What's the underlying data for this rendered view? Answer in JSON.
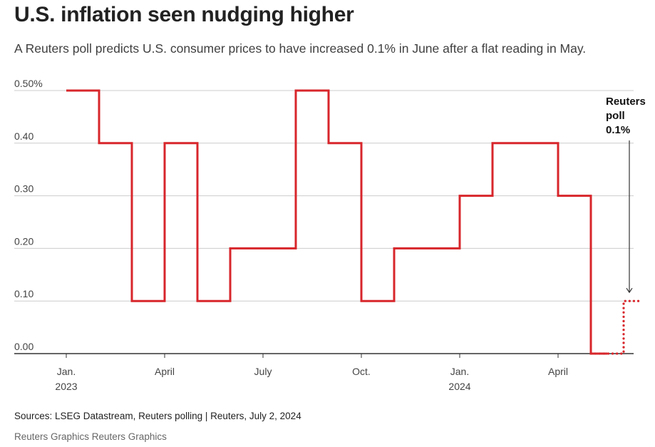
{
  "title": "U.S. inflation seen nudging higher",
  "subtitle": "A Reuters poll predicts U.S. consumer prices to have increased 0.1% in June after a flat reading in May.",
  "footer": {
    "sources": "Sources: LSEG Datastream, Reuters polling | Reuters, July 2, 2024",
    "credit": "Reuters Graphics Reuters Graphics"
  },
  "colors": {
    "line": "#d7262b",
    "grid": "#cccccc",
    "axis": "#333333",
    "annotation_arrow": "#333333"
  },
  "chart_data": {
    "type": "line",
    "step": true,
    "title": "U.S. inflation seen nudging higher",
    "xlabel": "",
    "ylabel": "",
    "ylim": [
      0,
      0.5
    ],
    "grid": true,
    "x": [
      "2023-01",
      "2023-02",
      "2023-03",
      "2023-04",
      "2023-05",
      "2023-06",
      "2023-07",
      "2023-08",
      "2023-09",
      "2023-10",
      "2023-11",
      "2023-12",
      "2024-01",
      "2024-02",
      "2024-03",
      "2024-04",
      "2024-05",
      "2024-06"
    ],
    "series": [
      {
        "name": "",
        "style": "solid",
        "x": [
          "2023-01",
          "2023-02",
          "2023-03",
          "2023-04",
          "2023-05",
          "2023-06",
          "2023-07",
          "2023-08",
          "2023-09",
          "2023-10",
          "2023-11",
          "2023-12",
          "2024-01",
          "2024-02",
          "2024-03",
          "2024-04",
          "2024-05"
        ],
        "values": [
          0.5,
          0.4,
          0.1,
          0.4,
          0.1,
          0.2,
          0.2,
          0.5,
          0.4,
          0.1,
          0.2,
          0.2,
          0.3,
          0.4,
          0.4,
          0.3,
          0.0
        ]
      },
      {
        "name": "",
        "style": "dotted",
        "x": [
          "2024-05",
          "2024-06"
        ],
        "values": [
          0.0,
          0.1
        ]
      }
    ],
    "y_ticks": [
      {
        "value": 0.5,
        "label": "0.50%"
      },
      {
        "value": 0.4,
        "label": "0.40"
      },
      {
        "value": 0.3,
        "label": "0.30"
      },
      {
        "value": 0.2,
        "label": "0.20"
      },
      {
        "value": 0.1,
        "label": "0.10"
      },
      {
        "value": 0.0,
        "label": "0.00"
      }
    ],
    "x_ticks": [
      {
        "month": "2023-01",
        "label": [
          "Jan.",
          "2023"
        ]
      },
      {
        "month": "2023-04",
        "label": [
          "April"
        ]
      },
      {
        "month": "2023-07",
        "label": [
          "July"
        ]
      },
      {
        "month": "2023-10",
        "label": [
          "Oct."
        ]
      },
      {
        "month": "2024-01",
        "label": [
          "Jan.",
          "2024"
        ]
      },
      {
        "month": "2024-04",
        "label": [
          "April"
        ]
      }
    ],
    "annotations": [
      {
        "text": [
          "Reuters",
          "poll",
          "0.1%"
        ],
        "target_month": "2024-06",
        "target_value": 0.1
      }
    ]
  }
}
